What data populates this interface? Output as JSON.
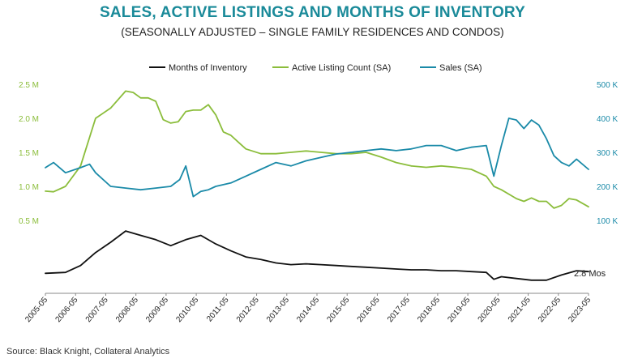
{
  "chart_data": {
    "type": "line",
    "title": "SALES, ACTIVE LISTINGS AND MONTHS OF INVENTORY",
    "subtitle": "(SEASONALLY ADJUSTED – SINGLE FAMILY RESIDENCES AND CONDOS)",
    "source": "Source: Black Knight, Collateral Analytics",
    "annotation": "2.8 Mos",
    "x_ticks": [
      "2005-05",
      "2006-05",
      "2007-05",
      "2008-05",
      "2009-05",
      "2010-05",
      "2011-05",
      "2012-05",
      "2013-05",
      "2014-05",
      "2015-05",
      "2016-05",
      "2017-05",
      "2018-05",
      "2019-05",
      "2020-05",
      "2021-05",
      "2022-05",
      "2023-05"
    ],
    "y_left_ticks": [
      "0.5 M",
      "1.0 M",
      "1.5 M",
      "2.0 M",
      "2.5 M"
    ],
    "y_left_values": [
      0.5,
      1.0,
      1.5,
      2.0,
      2.5
    ],
    "y_right_ticks": [
      "100 K",
      "200 K",
      "300 K",
      "400 K",
      "500 K"
    ],
    "y_right_values": [
      100,
      200,
      300,
      400,
      500
    ],
    "ylim_left": [
      0.5,
      2.5
    ],
    "ylim_right": [
      100,
      500
    ],
    "grid": false,
    "legend_position": "top",
    "series": [
      {
        "name": "Months of Inventory",
        "axis": "none",
        "color": "#111111",
        "x": [
          2005.33,
          2006.0,
          2006.5,
          2007.0,
          2007.5,
          2008.0,
          2008.5,
          2009.0,
          2009.5,
          2010.0,
          2010.5,
          2011.0,
          2011.5,
          2012.0,
          2012.5,
          2013.0,
          2013.5,
          2014.0,
          2014.5,
          2015.0,
          2015.5,
          2016.0,
          2016.5,
          2017.0,
          2017.5,
          2018.0,
          2018.5,
          2019.0,
          2019.5,
          2020.0,
          2020.25,
          2020.5,
          2021.0,
          2021.5,
          2022.0,
          2022.5,
          2023.0,
          2023.4
        ],
        "y": [
          2.6,
          2.7,
          3.5,
          5.0,
          6.2,
          7.5,
          7.0,
          6.5,
          5.8,
          6.5,
          7.0,
          6.0,
          5.2,
          4.5,
          4.2,
          3.8,
          3.6,
          3.7,
          3.6,
          3.5,
          3.4,
          3.3,
          3.2,
          3.1,
          3.0,
          3.0,
          2.9,
          2.9,
          2.8,
          2.7,
          1.9,
          2.2,
          2.0,
          1.8,
          1.8,
          2.4,
          2.9,
          2.8
        ]
      },
      {
        "name": "Active Listing Count (SA)",
        "axis": "left",
        "unit": "M",
        "color": "#8bbd3b",
        "x": [
          2005.33,
          2005.6,
          2006.0,
          2006.5,
          2007.0,
          2007.5,
          2008.0,
          2008.25,
          2008.5,
          2008.75,
          2009.0,
          2009.25,
          2009.5,
          2009.75,
          2010.0,
          2010.25,
          2010.5,
          2010.75,
          2011.0,
          2011.25,
          2011.5,
          2011.75,
          2012.0,
          2012.5,
          2013.0,
          2013.5,
          2014.0,
          2014.5,
          2015.0,
          2015.5,
          2016.0,
          2016.5,
          2017.0,
          2017.5,
          2018.0,
          2018.5,
          2019.0,
          2019.5,
          2020.0,
          2020.25,
          2020.5,
          2021.0,
          2021.25,
          2021.5,
          2021.75,
          2022.0,
          2022.25,
          2022.5,
          2022.75,
          2023.0,
          2023.4
        ],
        "y": [
          0.93,
          0.92,
          1.0,
          1.3,
          2.0,
          2.15,
          2.4,
          2.38,
          2.3,
          2.3,
          2.25,
          1.98,
          1.93,
          1.95,
          2.1,
          2.12,
          2.12,
          2.2,
          2.05,
          1.8,
          1.75,
          1.65,
          1.55,
          1.48,
          1.48,
          1.5,
          1.52,
          1.5,
          1.48,
          1.48,
          1.5,
          1.43,
          1.35,
          1.3,
          1.28,
          1.3,
          1.28,
          1.25,
          1.15,
          1.0,
          0.95,
          0.82,
          0.78,
          0.83,
          0.78,
          0.78,
          0.68,
          0.72,
          0.82,
          0.8,
          0.7
        ]
      },
      {
        "name": "Sales (SA)",
        "axis": "right",
        "unit": "K",
        "color": "#1a8aa8",
        "x": [
          2005.33,
          2005.6,
          2006.0,
          2006.5,
          2006.8,
          2007.0,
          2007.5,
          2008.0,
          2008.5,
          2009.0,
          2009.5,
          2009.8,
          2010.0,
          2010.25,
          2010.5,
          2010.75,
          2011.0,
          2011.5,
          2012.0,
          2012.5,
          2013.0,
          2013.5,
          2014.0,
          2014.5,
          2015.0,
          2015.5,
          2016.0,
          2016.5,
          2017.0,
          2017.5,
          2018.0,
          2018.5,
          2019.0,
          2019.5,
          2020.0,
          2020.25,
          2020.5,
          2020.75,
          2021.0,
          2021.25,
          2021.5,
          2021.75,
          2022.0,
          2022.25,
          2022.5,
          2022.75,
          2023.0,
          2023.4
        ],
        "y": [
          255,
          270,
          240,
          255,
          265,
          240,
          200,
          195,
          190,
          195,
          200,
          220,
          260,
          170,
          185,
          190,
          200,
          210,
          230,
          250,
          270,
          260,
          275,
          285,
          295,
          300,
          305,
          310,
          305,
          310,
          320,
          320,
          305,
          315,
          320,
          230,
          320,
          400,
          395,
          370,
          395,
          380,
          340,
          290,
          270,
          260,
          280,
          250
        ]
      }
    ]
  }
}
